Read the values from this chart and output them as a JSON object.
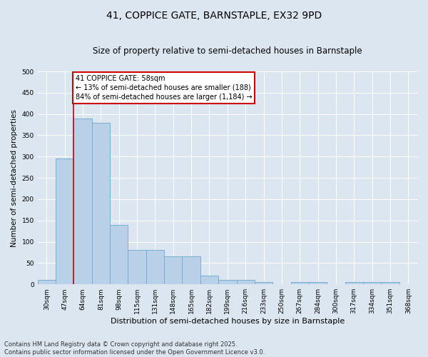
{
  "title": "41, COPPICE GATE, BARNSTAPLE, EX32 9PD",
  "subtitle": "Size of property relative to semi-detached houses in Barnstaple",
  "xlabel": "Distribution of semi-detached houses by size in Barnstaple",
  "ylabel": "Number of semi-detached properties",
  "categories": [
    "30sqm",
    "47sqm",
    "64sqm",
    "81sqm",
    "98sqm",
    "115sqm",
    "131sqm",
    "148sqm",
    "165sqm",
    "182sqm",
    "199sqm",
    "216sqm",
    "233sqm",
    "250sqm",
    "267sqm",
    "284sqm",
    "300sqm",
    "317sqm",
    "334sqm",
    "351sqm",
    "368sqm"
  ],
  "values": [
    10,
    295,
    390,
    380,
    140,
    80,
    80,
    65,
    65,
    20,
    10,
    10,
    5,
    0,
    5,
    5,
    0,
    5,
    5,
    5,
    0
  ],
  "bar_color": "#b8d0e8",
  "bar_edge_color": "#7aadd4",
  "bg_color": "#dce6f0",
  "grid_color": "#ffffff",
  "property_line_x": 1.5,
  "annotation_title": "41 COPPICE GATE: 58sqm",
  "annotation_line1": "← 13% of semi-detached houses are smaller (188)",
  "annotation_line2": "84% of semi-detached houses are larger (1,184) →",
  "annotation_box_color": "#ffffff",
  "annotation_box_edge_color": "#cc0000",
  "vline_color": "#cc0000",
  "footer_line1": "Contains HM Land Registry data © Crown copyright and database right 2025.",
  "footer_line2": "Contains public sector information licensed under the Open Government Licence v3.0.",
  "ylim": [
    0,
    500
  ],
  "yticks": [
    0,
    50,
    100,
    150,
    200,
    250,
    300,
    350,
    400,
    450,
    500
  ],
  "title_fontsize": 10,
  "subtitle_fontsize": 8.5,
  "ylabel_fontsize": 7.5,
  "xlabel_fontsize": 8,
  "tick_fontsize": 6.5,
  "annotation_fontsize": 7,
  "footer_fontsize": 6
}
